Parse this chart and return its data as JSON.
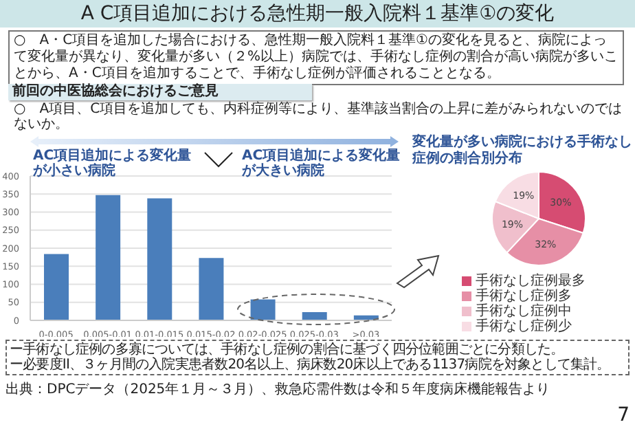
{
  "chart_data": [
    {
      "type": "bar",
      "title": "A C項目追加における急性期一般入院料１基準①の変化",
      "annotations": [
        "○　A・C項目を追加した場合における、急性期一般入院料１基準①の変化を見ると、病院によって変化量が異なり、変化量が多い（２%以上）病院では、手術なし症例の割合が高い病院が多いことから、A・C項目を追加することで、手術なし症例が評価されることとなる。",
        "前回の中医協総会におけるご意見",
        "○　A項目、C項目を追加しても、内科症例等により、基準該当割合の上昇に差がみられないのではないか。",
        "AC項目追加による変化量が小さい病院",
        "AC項目追加による変化量が大きい病院",
        "ー手術なし症例の多寡については、手術なし症例の割合に基づく四分位範囲ごとに分類した。",
        "ー必要度II、３ヶ月間の入院実患者数20名以上、病床数20床以上である1137病院を対象として集計。",
        "出典：DPCデータ（2025年１月～３月）、救急応需件数は令和５年度病床機能報告より",
        "7"
      ],
      "categories": [
        "0-0.005",
        "0.005-0.01",
        "0.01-0.015",
        "0.015-0.02",
        "0.02-0.025",
        "0.025-0.03",
        ">0.03"
      ],
      "values": [
        184,
        347,
        338,
        173,
        58,
        23,
        14
      ],
      "color": "#4a7ebb",
      "ylim": [
        0,
        400
      ],
      "yticks": [
        0,
        50,
        100,
        150,
        200,
        250,
        300,
        350,
        400
      ],
      "grid": "y"
    },
    {
      "type": "pie",
      "title": "変化量が多い病院における手術なし症例の割合別分布",
      "categories": [
        "手術なし症例最多",
        "手術なし症例多",
        "手術なし症例中",
        "手術なし症例少"
      ],
      "values": [
        30,
        32,
        19,
        19
      ],
      "colors": [
        "#d64c72",
        "#e68fa6",
        "#f0bfcc",
        "#f8dde4"
      ],
      "value_labels": [
        "30%",
        "32%",
        "19%",
        "19%"
      ],
      "legend": "bottom"
    }
  ]
}
